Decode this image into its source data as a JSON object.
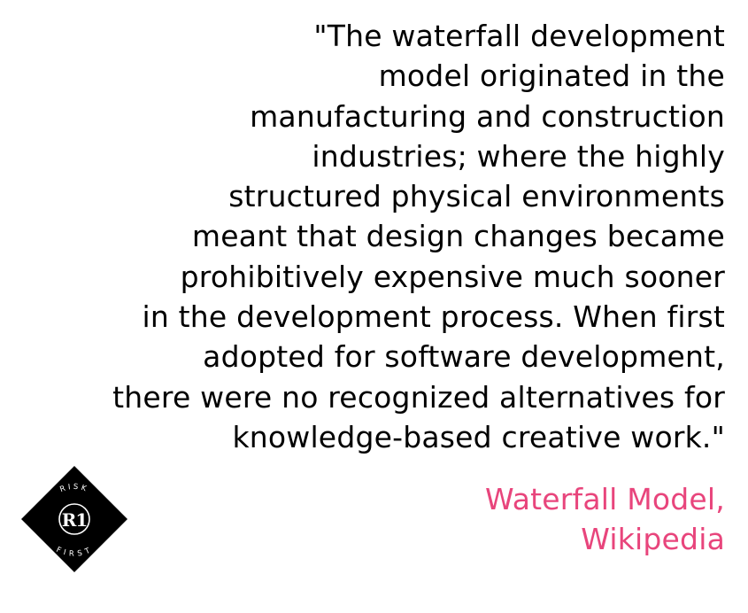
{
  "quote": {
    "lines": [
      "\"The waterfall development",
      "model originated in the",
      "manufacturing and construction",
      "industries; where the highly",
      "structured physical environments",
      "meant that design changes became",
      "prohibitively expensive much sooner",
      "in the development process. When first",
      "adopted for software development,",
      "there were no recognized alternatives for",
      "knowledge-based creative work.\""
    ]
  },
  "attribution": {
    "lines": [
      "Waterfall Model,",
      "Wikipedia"
    ]
  },
  "logo": {
    "top_text": "RISK",
    "monogram": "R1",
    "bottom_text": "FIRST"
  },
  "colors": {
    "quote_text": "#000000",
    "attribution_text": "#e8457c",
    "logo_fill": "#000000",
    "logo_stroke": "#ffffff",
    "background": "#ffffff"
  }
}
